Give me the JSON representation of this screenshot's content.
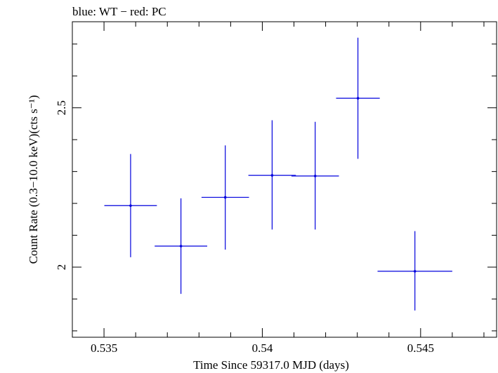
{
  "chart_data": {
    "type": "scatter",
    "title": "blue: WT − red: PC",
    "xlabel": "Time Since 59317.0 MJD (days)",
    "ylabel": "Count Rate (0.3−10.0 keV)(cts s⁻¹)",
    "xlim": [
      0.534,
      0.5474
    ],
    "ylim": [
      1.78,
      2.77
    ],
    "xticks": [
      {
        "value": 0.535,
        "label": "0.535"
      },
      {
        "value": 0.54,
        "label": "0.54"
      },
      {
        "value": 0.545,
        "label": "0.545"
      }
    ],
    "yticks": [
      {
        "value": 2.0,
        "label": "2"
      },
      {
        "value": 2.5,
        "label": "2.5"
      }
    ],
    "grid": false,
    "series": [
      {
        "color": "#0000dd",
        "points": [
          {
            "x": 0.53584,
            "y": 2.193,
            "xerr": 0.00083,
            "yerr": [
              0.162,
              0.162
            ]
          },
          {
            "x": 0.53743,
            "y": 2.066,
            "xerr": 0.00083,
            "yerr": [
              0.15,
              0.15
            ]
          },
          {
            "x": 0.53883,
            "y": 2.219,
            "xerr": 0.00075,
            "yerr": [
              0.164,
              0.163
            ]
          },
          {
            "x": 0.54031,
            "y": 2.288,
            "xerr": 0.00075,
            "yerr": [
              0.17,
              0.173
            ]
          },
          {
            "x": 0.54167,
            "y": 2.286,
            "xerr": 0.00075,
            "yerr": [
              0.168,
              0.17
            ]
          },
          {
            "x": 0.54302,
            "y": 2.53,
            "xerr": 0.00069,
            "yerr": [
              0.19,
              0.19
            ]
          },
          {
            "x": 0.54482,
            "y": 1.987,
            "xerr": 0.00118,
            "yerr": [
              0.123,
              0.126
            ]
          }
        ]
      }
    ]
  }
}
